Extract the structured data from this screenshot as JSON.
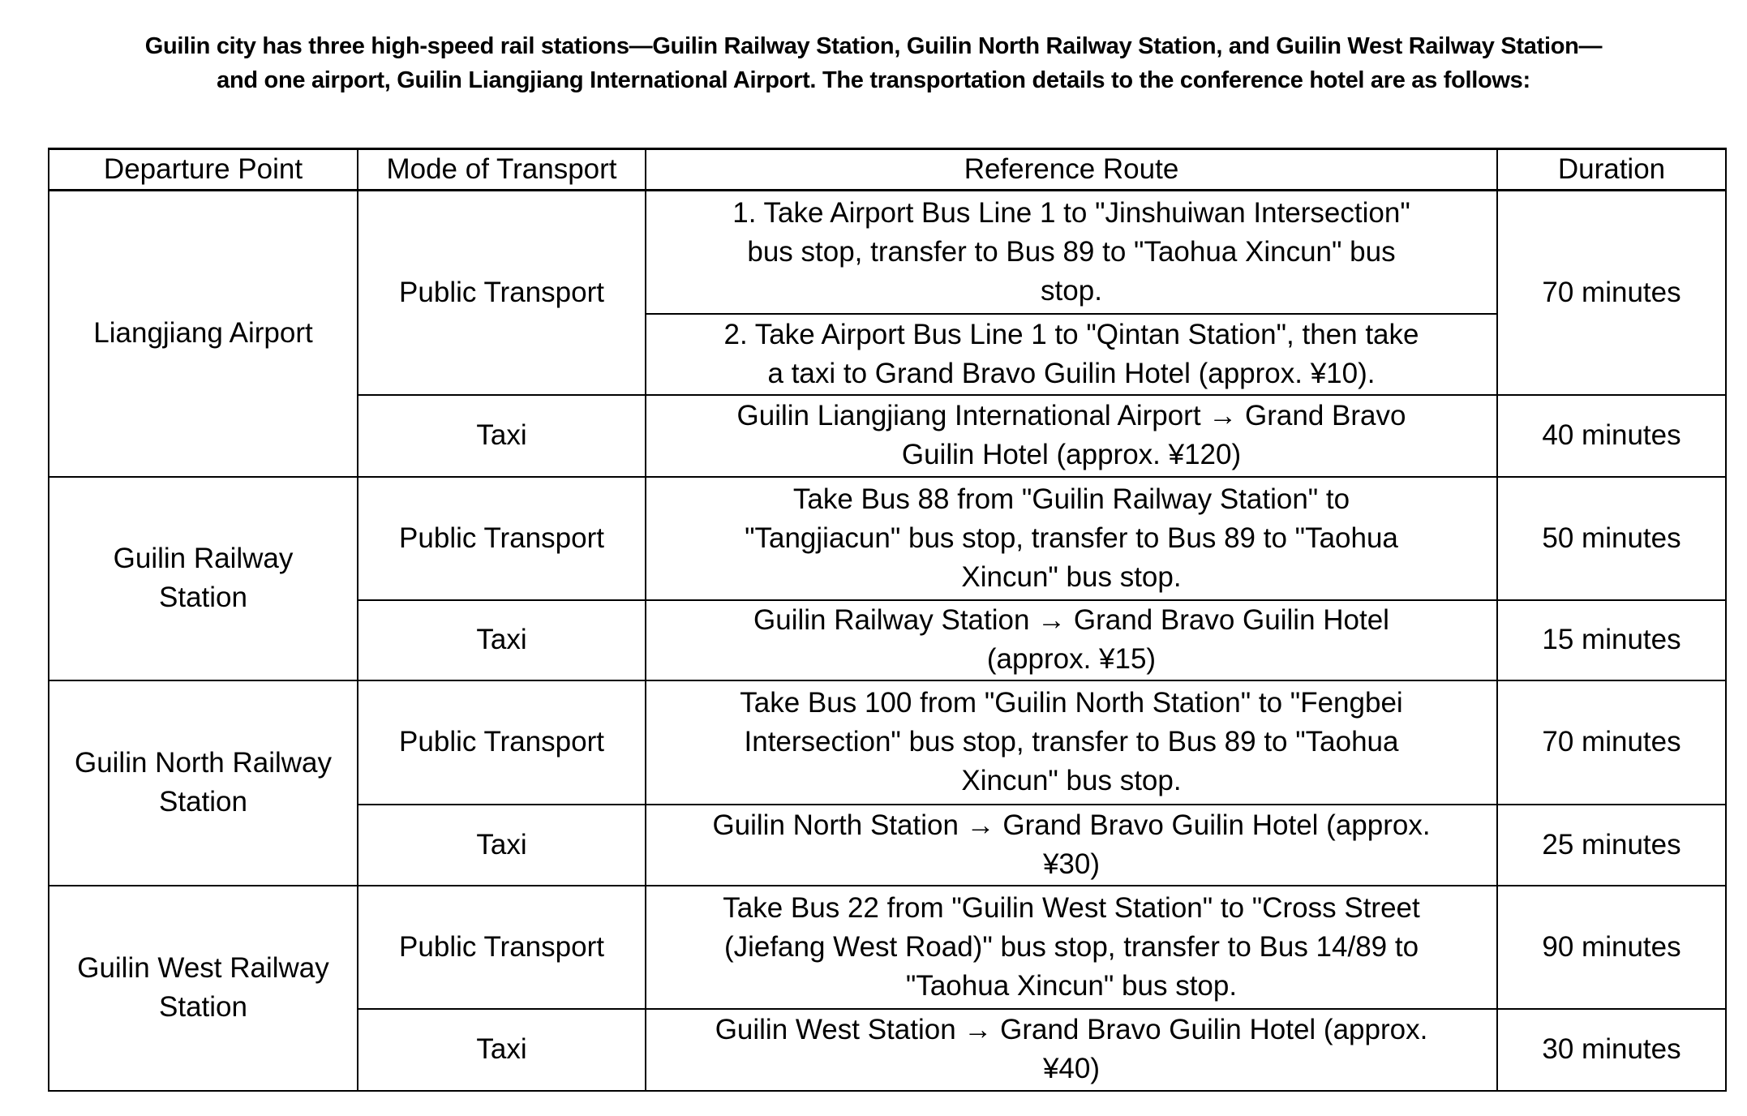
{
  "intro": {
    "line1": "Guilin city has three high-speed rail stations—Guilin Railway Station, Guilin North Railway Station, and Guilin West Railway Station—",
    "line2": "and one airport, Guilin Liangjiang International Airport. The transportation details to the conference hotel are as follows:"
  },
  "table": {
    "headers": [
      "Departure Point",
      "Mode of Transport",
      "Reference Route",
      "Duration"
    ],
    "groups": [
      {
        "departure": "Liangjiang Airport",
        "public": "Public Transport",
        "public_routes": [
          "1. Take Airport Bus Line 1 to \"Jinshuiwan Intersection\"\nbus stop, transfer to Bus 89 to \"Taohua Xincun\" bus\nstop.",
          "2. Take Airport Bus Line 1 to \"Qintan Station\", then take\na taxi to Grand Bravo Guilin Hotel  (approx. ¥10)."
        ],
        "public_duration": "70 minutes",
        "taxi": "Taxi",
        "taxi_route": "Guilin Liangjiang International Airport → Grand Bravo\nGuilin Hotel  (approx. ¥120)",
        "taxi_duration": "40 minutes"
      },
      {
        "departure": "Guilin Railway\nStation",
        "public": "Public Transport",
        "public_routes": [
          "Take Bus 88 from \"Guilin Railway Station\" to\n\"Tangjiacun\" bus stop, transfer to Bus 89 to \"Taohua\nXincun\" bus stop."
        ],
        "public_duration": "50 minutes",
        "taxi": "Taxi",
        "taxi_route": "Guilin Railway Station → Grand Bravo Guilin Hotel\n(approx. ¥15)",
        "taxi_duration": "15 minutes"
      },
      {
        "departure": "Guilin North Railway\nStation",
        "public": "Public Transport",
        "public_routes": [
          "Take Bus 100 from \"Guilin North Station\" to \"Fengbei\nIntersection\" bus stop, transfer to Bus 89 to \"Taohua\nXincun\" bus stop."
        ],
        "public_duration": "70 minutes",
        "taxi": "Taxi",
        "taxi_route": "Guilin North Station → Grand Bravo Guilin Hotel (approx.\n¥30)",
        "taxi_duration": "25 minutes"
      },
      {
        "departure": "Guilin West Railway\nStation",
        "public": "Public Transport",
        "public_routes": [
          "Take Bus 22 from \"Guilin West Station\" to \"Cross Street\n(Jiefang West Road)\" bus stop, transfer to Bus 14/89 to\n\"Taohua Xincun\" bus stop."
        ],
        "public_duration": "90 minutes",
        "taxi": "Taxi",
        "taxi_route": "Guilin West Station → Grand Bravo Guilin Hotel  (approx.\n¥40)",
        "taxi_duration": "30 minutes"
      }
    ]
  }
}
